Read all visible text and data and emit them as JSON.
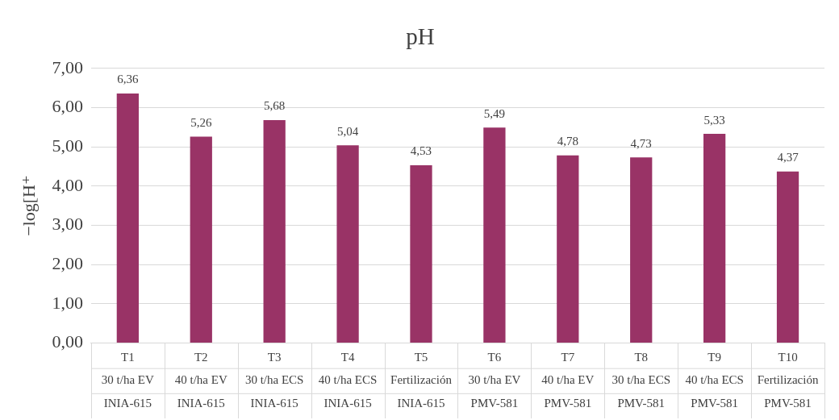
{
  "chart_data": {
    "type": "bar",
    "title": "pH",
    "ylabel": "−log[H⁺",
    "categories": [
      "T1\n30 t/ha EV\nINIA-615",
      "T2\n40 t/ha EV\nINIA-615",
      "T3\n30 t/ha ECS\nINIA-615",
      "T4\n40 t/ha ECS\nINIA-615",
      "T5\nFertilización\nINIA-615",
      "T6\n30 t/ha EV\nPMV-581",
      "T7\n40 t/ha EV\nPMV-581",
      "T8\n30 t/ha ECS\nPMV-581",
      "T9\n40 t/ha ECS\nPMV-581",
      "T10\nFertilización\nPMV-581"
    ],
    "values": [
      6.36,
      5.26,
      5.68,
      5.04,
      4.53,
      5.49,
      4.78,
      4.73,
      5.33,
      4.37
    ],
    "color": "#993366",
    "ylim": [
      0,
      7
    ],
    "yticks": [
      {
        "value": 0,
        "label": "0,00"
      },
      {
        "value": 1,
        "label": "1,00"
      },
      {
        "value": 2,
        "label": "2,00"
      },
      {
        "value": 3,
        "label": "3,00"
      },
      {
        "value": 4,
        "label": "4,00"
      },
      {
        "value": 5,
        "label": "5,00"
      },
      {
        "value": 6,
        "label": "6,00"
      },
      {
        "value": 7,
        "label": "7,00"
      }
    ],
    "value_labels": [
      "6,36",
      "5,26",
      "5,68",
      "5,04",
      "4,53",
      "5,49",
      "4,78",
      "4,73",
      "5,33",
      "4,37"
    ],
    "grid": "y",
    "legend": false
  }
}
